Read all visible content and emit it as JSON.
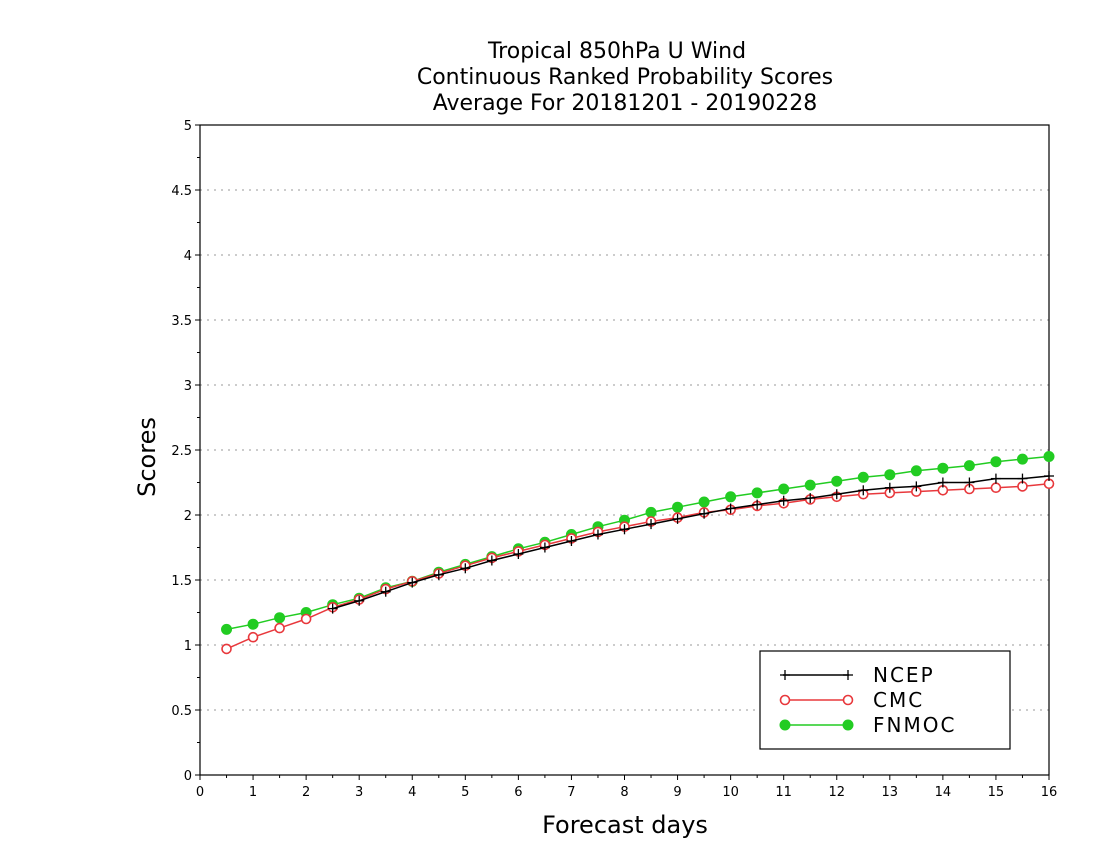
{
  "chart_data": {
    "type": "line",
    "title": [
      "Tropical 850hPa U Wind",
      "Continuous Ranked Probability Scores",
      "Average For 20181201 - 20190228"
    ],
    "xlabel": "Forecast days",
    "ylabel": "Scores",
    "xlim": [
      0,
      16
    ],
    "ylim": [
      0,
      5
    ],
    "xticks": [
      0,
      1,
      2,
      3,
      4,
      5,
      6,
      7,
      8,
      9,
      10,
      11,
      12,
      13,
      14,
      15,
      16
    ],
    "yticks": [
      0,
      0.5,
      1,
      1.5,
      2,
      2.5,
      3,
      3.5,
      4,
      4.5,
      5
    ],
    "ytick_labels": [
      "0",
      "0.5",
      "1",
      "1.5",
      "2",
      "2.5",
      "3",
      "3.5",
      "4",
      "4.5",
      "5"
    ],
    "grid": "horizontal dotted",
    "legend_position": "bottom-right",
    "x": [
      0.5,
      1,
      1.5,
      2,
      2.5,
      3,
      3.5,
      4,
      4.5,
      5,
      5.5,
      6,
      6.5,
      7,
      7.5,
      8,
      8.5,
      9,
      9.5,
      10,
      10.5,
      11,
      11.5,
      12,
      12.5,
      13,
      13.5,
      14,
      14.5,
      15,
      15.5,
      16
    ],
    "series": [
      {
        "name": "NCEP",
        "color": "#000000",
        "marker": "plus",
        "values": [
          null,
          null,
          null,
          null,
          1.28,
          1.34,
          1.41,
          1.48,
          1.54,
          1.59,
          1.65,
          1.7,
          1.75,
          1.8,
          1.85,
          1.89,
          1.93,
          1.97,
          2.01,
          2.05,
          2.08,
          2.11,
          2.13,
          2.16,
          2.19,
          2.21,
          2.22,
          2.25,
          2.25,
          2.28,
          2.28,
          2.3
        ]
      },
      {
        "name": "CMC",
        "color": "#e8383c",
        "marker": "open-circle",
        "values": [
          0.97,
          1.06,
          1.13,
          1.2,
          1.29,
          1.35,
          1.43,
          1.49,
          1.55,
          1.61,
          1.67,
          1.72,
          1.77,
          1.82,
          1.87,
          1.91,
          1.95,
          1.98,
          2.02,
          2.04,
          2.07,
          2.09,
          2.12,
          2.14,
          2.16,
          2.17,
          2.18,
          2.19,
          2.2,
          2.21,
          2.22,
          2.24
        ]
      },
      {
        "name": "FNMOC",
        "color": "#22cc22",
        "marker": "filled-circle",
        "values": [
          1.12,
          1.16,
          1.21,
          1.25,
          1.31,
          1.36,
          1.44,
          1.49,
          1.56,
          1.62,
          1.68,
          1.74,
          1.79,
          1.85,
          1.91,
          1.96,
          2.02,
          2.06,
          2.1,
          2.14,
          2.17,
          2.2,
          2.23,
          2.26,
          2.29,
          2.31,
          2.34,
          2.36,
          2.38,
          2.41,
          2.43,
          2.45
        ]
      }
    ]
  }
}
